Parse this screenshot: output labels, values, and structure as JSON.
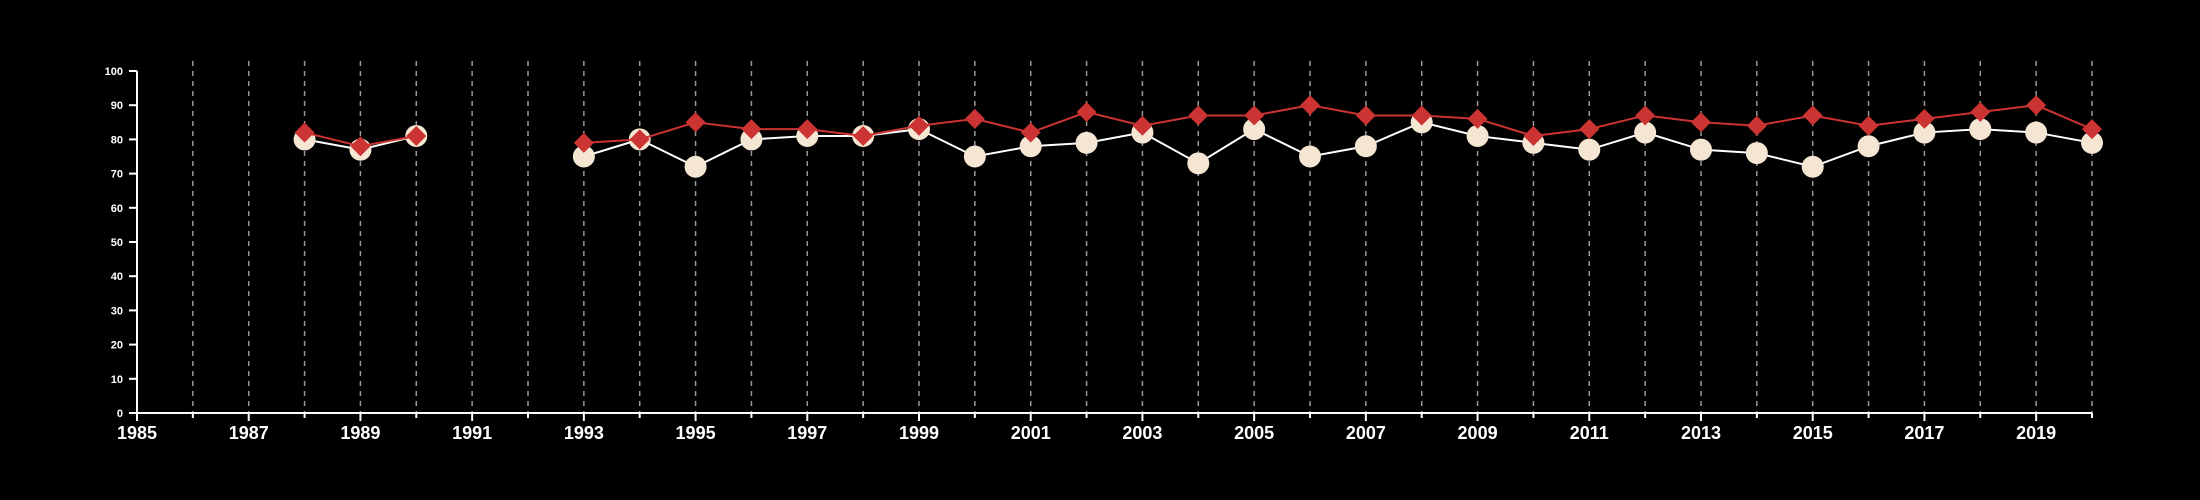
{
  "chart_data": {
    "type": "line",
    "title": "",
    "xlabel": "",
    "ylabel": "",
    "xlim": [
      1985,
      2020
    ],
    "ylim": [
      0,
      100
    ],
    "x_ticks": [
      1985,
      1987,
      1989,
      1991,
      1993,
      1995,
      1997,
      1999,
      2001,
      2003,
      2005,
      2007,
      2009,
      2011,
      2013,
      2015,
      2017,
      2019
    ],
    "y_ticks": [
      0,
      10,
      20,
      30,
      40,
      50,
      60,
      70,
      80,
      90,
      100
    ],
    "vertical_gridlines": "dashed, every year from 1986 to 2020",
    "background": "#000000",
    "series": [
      {
        "marker": "circle",
        "line_color": "#ffffff",
        "marker_color": "#f5e6d3",
        "x": [
          1988,
          1989,
          1990,
          1993,
          1994,
          1995,
          1996,
          1997,
          1998,
          1999,
          2000,
          2001,
          2002,
          2003,
          2004,
          2005,
          2006,
          2007,
          2008,
          2009,
          2010,
          2011,
          2012,
          2013,
          2014,
          2015,
          2016,
          2017,
          2018,
          2019,
          2020
        ],
        "values": [
          80,
          77,
          81,
          75,
          80,
          72,
          80,
          81,
          81,
          83,
          75,
          78,
          79,
          82,
          73,
          83,
          75,
          78,
          85,
          81,
          79,
          77,
          82,
          77,
          76,
          72,
          78,
          82,
          83,
          82,
          79
        ]
      },
      {
        "marker": "diamond",
        "line_color": "#cc3333",
        "marker_color": "#cc3333",
        "x": [
          1988,
          1989,
          1990,
          1993,
          1994,
          1995,
          1996,
          1997,
          1998,
          1999,
          2000,
          2001,
          2002,
          2003,
          2004,
          2005,
          2006,
          2007,
          2008,
          2009,
          2010,
          2011,
          2012,
          2013,
          2014,
          2015,
          2016,
          2017,
          2018,
          2019,
          2020
        ],
        "values": [
          82,
          78,
          81,
          79,
          80,
          85,
          83,
          83,
          81,
          84,
          86,
          82,
          88,
          84,
          87,
          87,
          90,
          87,
          87,
          86,
          81,
          83,
          87,
          85,
          84,
          87,
          84,
          86,
          88,
          90,
          83
        ]
      }
    ]
  }
}
